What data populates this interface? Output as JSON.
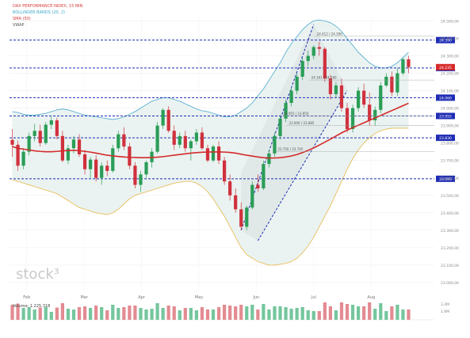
{
  "chart_data": {
    "type": "candlestick",
    "title": "",
    "legend_lines": [
      {
        "text": "DAX PERFORMANCE-INDEX, 15 MIN",
        "color": "#d63a3a"
      },
      {
        "text": "BOLLINGER BANDS (20, 2)",
        "color": "#3aa6c8"
      },
      {
        "text": "SMA (50)",
        "color": "#d63a3a"
      },
      {
        "text": "VWAP",
        "color": "#555555"
      }
    ],
    "watermark": "stock³",
    "x_ticks": [
      "Feb",
      "Mar",
      "Apr",
      "May",
      "Jun",
      "Jul",
      "Aug"
    ],
    "y_ticks": [
      23000,
      23100,
      23200,
      23300,
      23400,
      23500,
      23600,
      23700,
      23800,
      23900,
      24000,
      24100,
      24200,
      24300,
      24400,
      24500
    ],
    "ylim": [
      22950,
      24520
    ],
    "level_lines": [
      {
        "value": 24390,
        "label": "24.390"
      },
      {
        "value": 24230,
        "label": "24.230"
      },
      {
        "value": 24060,
        "label": "24.060"
      },
      {
        "value": 23955,
        "label": "23.955"
      },
      {
        "value": 23830,
        "label": "23.830"
      },
      {
        "value": 23595,
        "label": "23.595"
      }
    ],
    "last_price": {
      "value": 24235,
      "label": "24.235"
    },
    "annotations": [
      {
        "text": "24.412 / 24.390"
      },
      {
        "text": "24.161 / 24.160"
      },
      {
        "text": "23.955 / 23.950"
      },
      {
        "text": "23.900 / 23.885"
      },
      {
        "text": "23.750 / 23.745"
      }
    ],
    "volume_label": "Volume: 1.225.318",
    "volume_ticks": [
      "3.2M",
      "1.6M"
    ],
    "candles_ohlc": [
      [
        23818,
        23880,
        23720,
        23790
      ],
      [
        23790,
        23815,
        23640,
        23670
      ],
      [
        23670,
        23770,
        23650,
        23750
      ],
      [
        23750,
        23860,
        23730,
        23840
      ],
      [
        23840,
        23910,
        23810,
        23870
      ],
      [
        23870,
        23905,
        23780,
        23800
      ],
      [
        23800,
        23920,
        23790,
        23905
      ],
      [
        23905,
        23950,
        23880,
        23930
      ],
      [
        23930,
        23945,
        23820,
        23840
      ],
      [
        23840,
        23870,
        23690,
        23700
      ],
      [
        23700,
        23790,
        23680,
        23770
      ],
      [
        23770,
        23840,
        23740,
        23820
      ],
      [
        23820,
        23850,
        23720,
        23735
      ],
      [
        23735,
        23760,
        23620,
        23650
      ],
      [
        23650,
        23720,
        23600,
        23705
      ],
      [
        23705,
        23730,
        23580,
        23600
      ],
      [
        23600,
        23690,
        23560,
        23670
      ],
      [
        23670,
        23700,
        23610,
        23640
      ],
      [
        23640,
        23790,
        23630,
        23770
      ],
      [
        23770,
        23870,
        23750,
        23850
      ],
      [
        23850,
        23890,
        23760,
        23780
      ],
      [
        23780,
        23800,
        23650,
        23670
      ],
      [
        23670,
        23690,
        23540,
        23560
      ],
      [
        23560,
        23640,
        23520,
        23620
      ],
      [
        23620,
        23700,
        23600,
        23690
      ],
      [
        23690,
        23770,
        23660,
        23750
      ],
      [
        23750,
        23920,
        23740,
        23900
      ],
      [
        23900,
        24000,
        23880,
        23990
      ],
      [
        23990,
        24010,
        23860,
        23870
      ],
      [
        23870,
        23900,
        23760,
        23790
      ],
      [
        23790,
        23860,
        23770,
        23840
      ],
      [
        23840,
        23870,
        23750,
        23770
      ],
      [
        23770,
        23820,
        23700,
        23810
      ],
      [
        23810,
        23880,
        23790,
        23860
      ],
      [
        23860,
        23890,
        23760,
        23770
      ],
      [
        23770,
        23790,
        23690,
        23700
      ],
      [
        23700,
        23790,
        23690,
        23780
      ],
      [
        23780,
        23810,
        23680,
        23700
      ],
      [
        23700,
        23720,
        23560,
        23580
      ],
      [
        23580,
        23620,
        23470,
        23500
      ],
      [
        23500,
        23540,
        23400,
        23420
      ],
      [
        23420,
        23460,
        23300,
        23320
      ],
      [
        23320,
        23440,
        23300,
        23430
      ],
      [
        23430,
        23580,
        23420,
        23560
      ],
      [
        23560,
        23620,
        23520,
        23540
      ],
      [
        23540,
        23700,
        23530,
        23680
      ],
      [
        23680,
        23760,
        23660,
        23740
      ],
      [
        23740,
        23860,
        23720,
        23840
      ],
      [
        23840,
        23960,
        23820,
        23940
      ],
      [
        23940,
        24050,
        23920,
        24030
      ],
      [
        24030,
        24120,
        24010,
        24100
      ],
      [
        24100,
        24200,
        24080,
        24180
      ],
      [
        24180,
        24290,
        24160,
        24270
      ],
      [
        24270,
        24330,
        24240,
        24300
      ],
      [
        24300,
        24360,
        24280,
        24350
      ],
      [
        24350,
        24380,
        24300,
        24340
      ],
      [
        24340,
        24350,
        24150,
        24170
      ],
      [
        24170,
        24190,
        24050,
        24080
      ],
      [
        24080,
        24150,
        24060,
        24130
      ],
      [
        24130,
        24170,
        23980,
        24000
      ],
      [
        24000,
        24030,
        23860,
        23880
      ],
      [
        23880,
        24020,
        23860,
        24000
      ],
      [
        24000,
        24120,
        23980,
        24100
      ],
      [
        24100,
        24140,
        24000,
        24020
      ],
      [
        24020,
        24090,
        23900,
        23930
      ],
      [
        23930,
        24010,
        23900,
        23990
      ],
      [
        23990,
        24150,
        23970,
        24130
      ],
      [
        24130,
        24200,
        24120,
        24180
      ],
      [
        24180,
        24210,
        24070,
        24090
      ],
      [
        24090,
        24230,
        24070,
        24200
      ],
      [
        24200,
        24290,
        24190,
        24280
      ],
      [
        24280,
        24300,
        24200,
        24235
      ]
    ],
    "sma_50": [
      23780,
      23770,
      23765,
      23760,
      23755,
      23752,
      23750,
      23750,
      23752,
      23755,
      23757,
      23758,
      23756,
      23752,
      23748,
      23742,
      23736,
      23730,
      23726,
      23723,
      23720,
      23718,
      23717,
      23716,
      23716,
      23717,
      23719,
      23722,
      23726,
      23730,
      23734,
      23738,
      23742,
      23745,
      23747,
      23748,
      23749,
      23749,
      23748,
      23746,
      23742,
      23736,
      23730,
      23725,
      23720,
      23716,
      23714,
      23714,
      23716,
      23720,
      23726,
      23734,
      23745,
      23758,
      23772,
      23788,
      23805,
      23822,
      23840,
      23858,
      23874,
      23888,
      23902,
      23916,
      23930,
      23944,
      23958,
      23972,
      23986,
      24000,
      24014,
      24028
    ],
    "bb_upper": [
      23980,
      23975,
      23965,
      23960,
      23960,
      23965,
      23970,
      23980,
      23990,
      23995,
      23990,
      23980,
      23970,
      23960,
      23955,
      23950,
      23945,
      23940,
      23935,
      23940,
      23950,
      23965,
      23980,
      24000,
      24020,
      24040,
      24050,
      24060,
      24060,
      24050,
      24040,
      24025,
      24010,
      23995,
      23985,
      23980,
      23970,
      23960,
      23950,
      23950,
      23960,
      23980,
      24000,
      24030,
      24070,
      24110,
      24160,
      24210,
      24260,
      24320,
      24370,
      24410,
      24450,
      24480,
      24500,
      24505,
      24500,
      24490,
      24470,
      24440,
      24400,
      24360,
      24320,
      24290,
      24260,
      24240,
      24230,
      24230,
      24240,
      24260,
      24290,
      24320
    ],
    "bb_lower": [
      23590,
      23580,
      23570,
      23560,
      23550,
      23540,
      23530,
      23520,
      23510,
      23490,
      23470,
      23450,
      23430,
      23420,
      23410,
      23400,
      23395,
      23390,
      23400,
      23420,
      23450,
      23480,
      23500,
      23510,
      23520,
      23530,
      23540,
      23550,
      23560,
      23570,
      23575,
      23580,
      23580,
      23570,
      23550,
      23520,
      23480,
      23430,
      23380,
      23320,
      23260,
      23200,
      23160,
      23140,
      23120,
      23110,
      23100,
      23100,
      23105,
      23110,
      23120,
      23140,
      23170,
      23210,
      23260,
      23320,
      23380,
      23440,
      23510,
      23580,
      23650,
      23710,
      23760,
      23800,
      23830,
      23855,
      23870,
      23880,
      23885,
      23885,
      23885,
      23885
    ]
  }
}
